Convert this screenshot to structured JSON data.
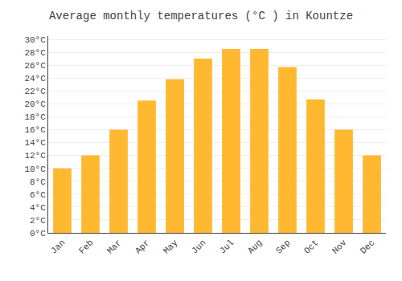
{
  "chart_data": {
    "type": "bar",
    "title": "Average monthly temperatures (°C ) in Kountze",
    "categories": [
      "Jan",
      "Feb",
      "Mar",
      "Apr",
      "May",
      "Jun",
      "Jul",
      "Aug",
      "Sep",
      "Oct",
      "Nov",
      "Dec"
    ],
    "values": [
      10,
      12,
      16,
      20.5,
      23.8,
      27,
      28.5,
      28.5,
      25.7,
      20.7,
      16,
      12
    ],
    "color": "#FFB830",
    "ylim": [
      0,
      30.5
    ],
    "yticks": [
      {
        "value": 0,
        "label": "0°C"
      },
      {
        "value": 2,
        "label": "2°C"
      },
      {
        "value": 4,
        "label": "4°C"
      },
      {
        "value": 6,
        "label": "6°C"
      },
      {
        "value": 8,
        "label": "8°C"
      },
      {
        "value": 10,
        "label": "10°C"
      },
      {
        "value": 12,
        "label": "12°C"
      },
      {
        "value": 14,
        "label": "14°C"
      },
      {
        "value": 16,
        "label": "16°C"
      },
      {
        "value": 18,
        "label": "18°C"
      },
      {
        "value": 20,
        "label": "20°C"
      },
      {
        "value": 22,
        "label": "22°C"
      },
      {
        "value": 24,
        "label": "24°C"
      },
      {
        "value": 26,
        "label": "26°C"
      },
      {
        "value": 28,
        "label": "28°C"
      },
      {
        "value": 30,
        "label": "30°C"
      }
    ],
    "grid": true
  }
}
